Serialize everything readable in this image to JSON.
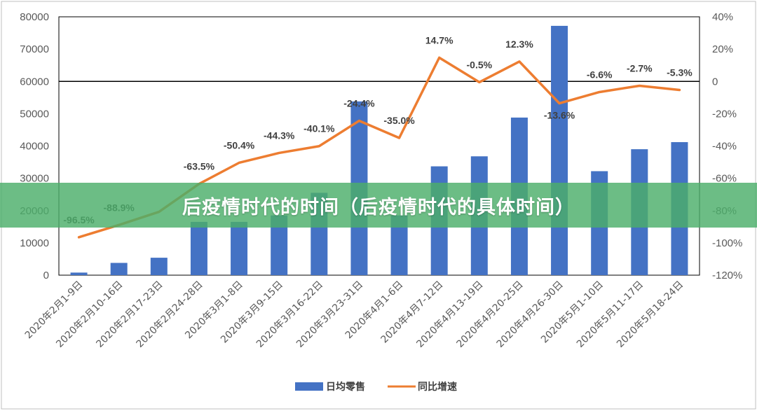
{
  "banner": {
    "title": "后疫情时代的时间（后疫情时代的具体时间）"
  },
  "colors": {
    "bar": "#4472C4",
    "line": "#ED7D31",
    "banner": "#4CAF6A"
  },
  "chart_data": {
    "type": "bar",
    "combo": "bar+line (dual axis)",
    "categories": [
      "2020年2月1-9日",
      "2020年2月10-16日",
      "2020年2月17-23日",
      "2020年2月24-28日",
      "2020年3月1-8日",
      "2020年3月9-15日",
      "2020年3月16-22日",
      "2020年3月23-31日",
      "2020年4月1-6日",
      "2020年4月7-12日",
      "2020年4月13-19日",
      "2020年4月20-25日",
      "2020年4月26-30日",
      "2020年5月1-10日",
      "2020年5月11-17日",
      "2020年5月18-24日"
    ],
    "series": [
      {
        "name": "日均零售",
        "type": "bar",
        "axis": "left",
        "values": [
          800,
          3800,
          5400,
          16500,
          16500,
          18500,
          25500,
          53800,
          18500,
          33700,
          36800,
          48800,
          77200,
          32200,
          39000,
          41200
        ]
      },
      {
        "name": "同比增速",
        "type": "line",
        "axis": "right",
        "values": [
          -96.5,
          -88.9,
          -80.8,
          -63.5,
          -50.4,
          -44.3,
          -40.1,
          -24.4,
          -35.0,
          14.7,
          -0.5,
          12.3,
          -13.6,
          -6.6,
          -2.7,
          -5.3
        ],
        "labels": [
          "-96.5%",
          "-88.9%",
          "",
          "-63.5%",
          "-50.4%",
          "-44.3%",
          "-40.1%",
          "-24.4%",
          "-35.0%",
          "14.7%",
          "-0.5%",
          "12.3%",
          "-13.6%",
          "-6.6%",
          "-2.7%",
          "-5.3%"
        ]
      }
    ],
    "y_left": {
      "ylim": [
        0,
        80000
      ],
      "ticks": [
        "0",
        "10000",
        "20000",
        "30000",
        "40000",
        "50000",
        "60000",
        "70000",
        "80000"
      ]
    },
    "y_right": {
      "ylim": [
        -120,
        40
      ],
      "ticks": [
        "-120%",
        "-100%",
        "-80%",
        "-60%",
        "-40%",
        "-20%",
        "0",
        "20%",
        "40%"
      ]
    },
    "legend": {
      "position": "bottom"
    },
    "grid": false
  }
}
